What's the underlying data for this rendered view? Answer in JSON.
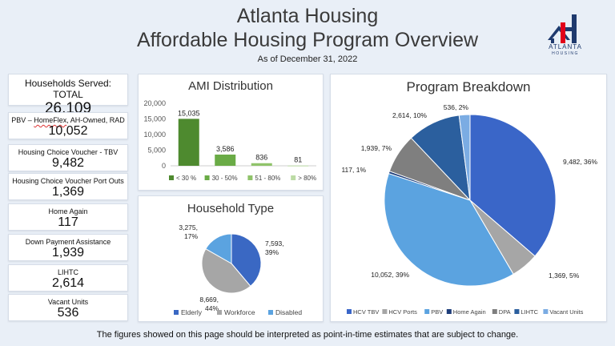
{
  "header": {
    "title_line1": "Atlanta Housing",
    "title_line2": "Affordable Housing Program Overview",
    "as_of": "As of December 31, 2022",
    "logo_text": "ATLANTA",
    "logo_sub": "HOUSING"
  },
  "kpis": [
    {
      "label": "Households Served: TOTAL",
      "value": "26,109"
    },
    {
      "label_pre": "PBV – ",
      "label_link": "HomeFlex",
      "label_post": ", AH-Owned, RAD",
      "value": "10,052"
    },
    {
      "label": "Housing Choice Voucher - TBV",
      "value": "9,482"
    },
    {
      "label": "Housing Choice Voucher Port Outs",
      "value": "1,369"
    },
    {
      "label": "Home Again",
      "value": "117"
    },
    {
      "label": "Down Payment Assistance",
      "value": "1,939"
    },
    {
      "label": "LIHTC",
      "value": "2,614"
    },
    {
      "label": "Vacant Units",
      "value": "536"
    }
  ],
  "colors": {
    "ami": [
      "#4e8a2f",
      "#6aab46",
      "#8fc36a",
      "#bcdba5"
    ],
    "household": [
      "#3a68c3",
      "#a6a6a6",
      "#5ba3e0"
    ],
    "program": [
      "#3a66c8",
      "#a6a6a6",
      "#5ba3e0",
      "#1e3d7a",
      "#7f7f7f",
      "#2b5f9e",
      "#7bace3"
    ]
  },
  "footer": "The figures showed on this page should be interpreted as point-in-time estimates that are subject to change.",
  "chart_data": [
    {
      "type": "bar",
      "title": "AMI Distribution",
      "categories": [
        "< 30 %",
        "30 - 50%",
        "51 - 80%",
        "> 80%"
      ],
      "values": [
        15035,
        3586,
        836,
        81
      ],
      "data_labels": [
        "15,035",
        "3,586",
        "836",
        "81"
      ],
      "ylim": [
        0,
        20000
      ],
      "yticks": [
        "0",
        "5,000",
        "10,000",
        "15,000",
        "20,000"
      ],
      "legend": "bottom"
    },
    {
      "type": "pie",
      "title": "Household Type",
      "categories": [
        "Elderly",
        "Workforce",
        "Disabled"
      ],
      "values": [
        7593,
        8669,
        3275
      ],
      "data_labels": [
        [
          "7,593,",
          "39%"
        ],
        [
          "8,669,",
          "44%"
        ],
        [
          "3,275,",
          "17%"
        ]
      ],
      "legend": "bottom"
    },
    {
      "type": "pie",
      "title": "Program Breakdown",
      "categories": [
        "HCV TBV",
        "HCV Ports",
        "PBV",
        "Home Again",
        "DPA",
        "LIHTC",
        "Vacant Units"
      ],
      "values": [
        9482,
        1369,
        10052,
        117,
        1939,
        2614,
        536
      ],
      "data_labels": [
        "9,482, 36%",
        "1,369, 5%",
        "10,052, 39%",
        "117, 1%",
        "1,939, 7%",
        "2,614, 10%",
        "536, 2%"
      ],
      "legend": "bottom"
    }
  ]
}
